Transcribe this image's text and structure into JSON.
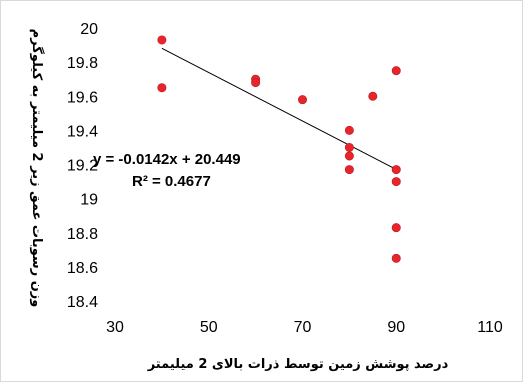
{
  "chart_data": {
    "type": "scatter",
    "title": "",
    "xlabel": "درصد پوشش زمین توسط ذرات بالای 2 میلیمتر",
    "ylabel": "وزن رسوبات عمق زیر 2 میلیمتر به کیلوگرم",
    "xlim": [
      30,
      110
    ],
    "ylim": [
      18.4,
      20
    ],
    "x_ticks": [
      "30",
      "50",
      "70",
      "90",
      "110"
    ],
    "y_ticks": [
      "18.4",
      "18.6",
      "18.8",
      "19",
      "19.2",
      "19.4",
      "19.6",
      "19.8",
      "20"
    ],
    "grid": false,
    "legend": "none",
    "marker_color": "#e8252c",
    "trendline_color": "#000000",
    "points": [
      {
        "x": 40,
        "y": 19.93
      },
      {
        "x": 40,
        "y": 19.65
      },
      {
        "x": 60,
        "y": 19.7
      },
      {
        "x": 60,
        "y": 19.68
      },
      {
        "x": 70,
        "y": 19.58
      },
      {
        "x": 80,
        "y": 19.4
      },
      {
        "x": 80,
        "y": 19.3
      },
      {
        "x": 80,
        "y": 19.25
      },
      {
        "x": 80,
        "y": 19.17
      },
      {
        "x": 85,
        "y": 19.6
      },
      {
        "x": 90,
        "y": 19.75
      },
      {
        "x": 90,
        "y": 19.17
      },
      {
        "x": 90,
        "y": 19.1
      },
      {
        "x": 90,
        "y": 18.83
      },
      {
        "x": 90,
        "y": 18.65
      }
    ],
    "trendline": {
      "slope": -0.0142,
      "intercept": 20.449,
      "x_range": [
        40,
        90
      ],
      "equation": "y = -0.0142x + 20.449",
      "r2": "R² = 0.4677"
    }
  }
}
